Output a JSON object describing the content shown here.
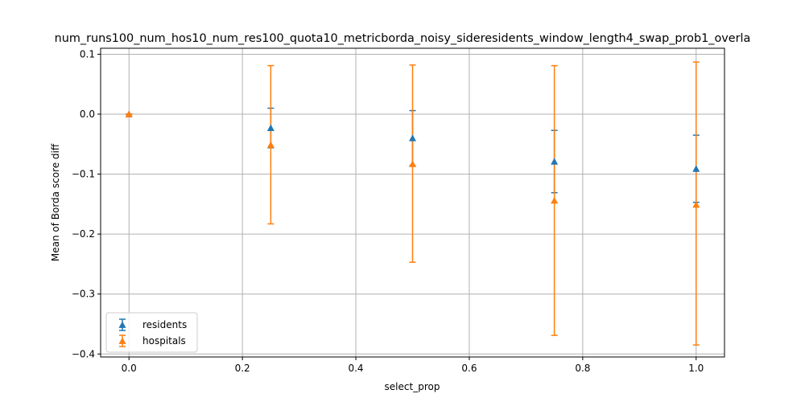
{
  "chart_data": {
    "type": "scatter",
    "title": "num_runs100_num_hos10_num_res100_quota10_metricborda_noisy_sideresidents_window_length4_swap_prob1_overla",
    "xlabel": "select_prop",
    "ylabel": "Mean of Borda score diff",
    "xlim": [
      -0.05,
      1.05
    ],
    "ylim": [
      -0.405,
      0.11
    ],
    "xticks": [
      0.0,
      0.2,
      0.4,
      0.6,
      0.8,
      1.0
    ],
    "xtick_labels": [
      "0.0",
      "0.2",
      "0.4",
      "0.6",
      "0.8",
      "1.0"
    ],
    "yticks": [
      -0.4,
      -0.3,
      -0.2,
      -0.1,
      0.0,
      0.1
    ],
    "ytick_labels": [
      "−0.4",
      "−0.3",
      "−0.2",
      "−0.1",
      "0.0",
      "0.1"
    ],
    "grid": true,
    "legend_position": "lower-left",
    "marker": "triangle-up",
    "series": [
      {
        "name": "residents",
        "color": "#1f77b4",
        "x": [
          0.0,
          0.25,
          0.5,
          0.75,
          1.0
        ],
        "y": [
          0.0,
          -0.023,
          -0.04,
          -0.079,
          -0.091
        ],
        "yerr_low": [
          0.0,
          -0.056,
          -0.086,
          -0.131,
          -0.147
        ],
        "yerr_high": [
          0.0,
          0.01,
          0.006,
          -0.027,
          -0.035
        ]
      },
      {
        "name": "hospitals",
        "color": "#ff7f0e",
        "x": [
          0.0,
          0.25,
          0.5,
          0.75,
          1.0
        ],
        "y": [
          0.0,
          -0.051,
          -0.083,
          -0.144,
          -0.151
        ],
        "yerr_low": [
          0.0,
          -0.183,
          -0.247,
          -0.369,
          -0.385
        ],
        "yerr_high": [
          0.0,
          0.081,
          0.082,
          0.081,
          0.087
        ]
      }
    ]
  }
}
